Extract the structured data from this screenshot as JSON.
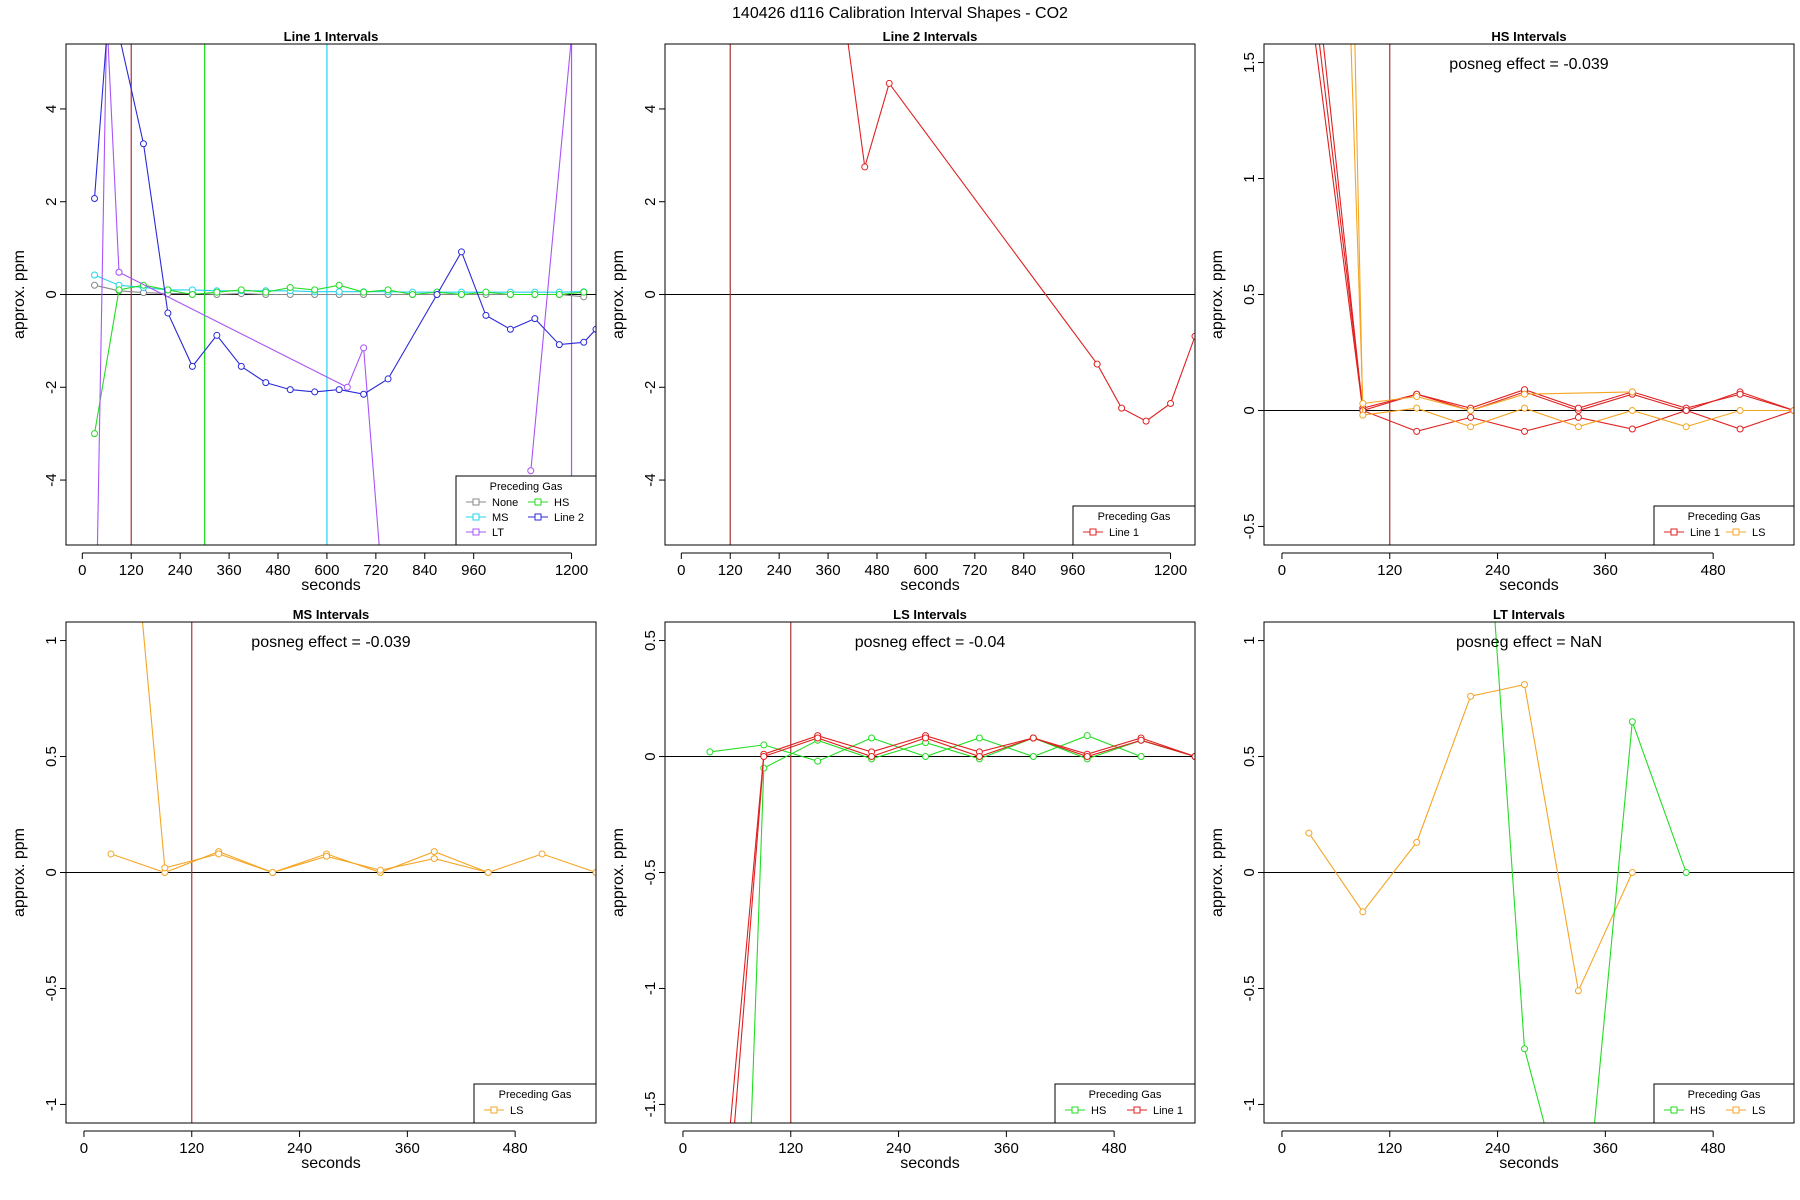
{
  "title": "140426  d116   Calibration Interval Shapes - CO2",
  "colors": {
    "None": "#888888",
    "MS": "#22d3ee",
    "LT": "#a855f7",
    "HS": "#22dd22",
    "Line 2": "#2a2ad8",
    "Line 1": "#e02020",
    "LS": "#f5a524",
    "ref_line": "#a83232",
    "zero_line": "#000000"
  },
  "chart_data": [
    {
      "type": "line",
      "title": "Line 1 Intervals",
      "xlabel": "seconds",
      "ylabel": "approx. ppm",
      "xlim": [
        -40,
        1260
      ],
      "ylim": [
        -5.4,
        5.4
      ],
      "xticks": [
        0,
        120,
        240,
        360,
        480,
        600,
        720,
        840,
        960,
        1200
      ],
      "yticks": [
        -4,
        -2,
        0,
        2,
        4
      ],
      "ref_x": 120,
      "vlines": [
        {
          "x": 300,
          "series": "HS"
        },
        {
          "x": 600,
          "series": "MS"
        },
        {
          "x": 1200,
          "series": "LT"
        }
      ],
      "annotation": "",
      "legend": {
        "title": "Preceding Gas",
        "position": "bottom-right",
        "cols": 2,
        "items": [
          "None",
          "HS",
          "MS",
          "Line 2",
          "LT"
        ]
      },
      "series": [
        {
          "name": "None",
          "x": [
            30,
            90,
            150,
            210,
            270,
            330,
            390,
            450,
            510,
            570,
            630,
            690,
            750,
            810,
            870,
            930,
            990,
            1050,
            1110,
            1170,
            1230
          ],
          "y": [
            0.2,
            0.08,
            0.04,
            0.02,
            0.02,
            0.0,
            0.02,
            0.0,
            0.0,
            0.0,
            0.0,
            0.0,
            0.0,
            0.0,
            0.0,
            0.0,
            0.0,
            0.0,
            0.0,
            0.0,
            -0.05
          ]
        },
        {
          "name": "MS",
          "x": [
            30,
            90,
            150,
            210,
            270,
            330,
            390,
            450,
            510,
            570,
            630,
            690,
            750,
            810,
            870,
            930,
            990,
            1050,
            1110,
            1170,
            1230
          ],
          "y": [
            0.42,
            0.2,
            0.15,
            0.1,
            0.1,
            0.08,
            0.08,
            0.08,
            0.08,
            0.06,
            0.06,
            0.06,
            0.06,
            0.05,
            0.05,
            0.05,
            0.05,
            0.05,
            0.05,
            0.05,
            0.06
          ]
        },
        {
          "name": "HS",
          "x": [
            30,
            90,
            150,
            210,
            270,
            330,
            390,
            450,
            510,
            570,
            630,
            690,
            750,
            810,
            870,
            930,
            990,
            1050,
            1110,
            1170,
            1230
          ],
          "y": [
            -3.0,
            0.1,
            0.2,
            0.1,
            0.0,
            0.05,
            0.1,
            0.05,
            0.15,
            0.1,
            0.2,
            0.05,
            0.1,
            0.0,
            0.05,
            0.0,
            0.05,
            0.0,
            0.0,
            0.0,
            0.05
          ]
        },
        {
          "name": "LT",
          "x": [
            90,
            650,
            690,
            730
          ],
          "y": [
            0.48,
            -2.0,
            -1.15,
            -5.6
          ]
        },
        {
          "name": "LT",
          "x": [
            1100,
            1210
          ],
          "y": [
            -3.8,
            6.5
          ]
        },
        {
          "name": "LT",
          "x": [
            30,
            60,
            90
          ],
          "y": [
            -9.0,
            6.0,
            0.48
          ]
        },
        {
          "name": "Line 2",
          "x": [
            30,
            60,
            90,
            150,
            210,
            270,
            330,
            390,
            450,
            510,
            570,
            630,
            690,
            750,
            870,
            930,
            990,
            1050,
            1110,
            1170,
            1230,
            1260
          ],
          "y": [
            2.07,
            5.6,
            5.6,
            3.25,
            -0.4,
            -1.55,
            -0.88,
            -1.55,
            -1.9,
            -2.05,
            -2.1,
            -2.05,
            -2.15,
            -1.82,
            0.0,
            0.92,
            -0.45,
            -0.75,
            -0.52,
            -1.08,
            -1.03,
            -0.75
          ]
        }
      ]
    },
    {
      "type": "line",
      "title": "Line 2 Intervals",
      "xlabel": "seconds",
      "ylabel": "approx. ppm",
      "xlim": [
        -40,
        1260
      ],
      "ylim": [
        -5.4,
        5.4
      ],
      "xticks": [
        0,
        120,
        240,
        360,
        480,
        600,
        720,
        840,
        960,
        1200
      ],
      "yticks": [
        -4,
        -2,
        0,
        2,
        4
      ],
      "ref_x": 120,
      "vlines": [],
      "annotation": "",
      "legend": {
        "title": "Preceding Gas",
        "position": "bottom-right",
        "cols": 1,
        "items": [
          "Line 1"
        ]
      },
      "series": [
        {
          "name": "Line 1",
          "x": [
            400,
            450,
            510,
            1020,
            1080,
            1140,
            1200,
            1260
          ],
          "y": [
            6.0,
            2.75,
            4.55,
            -1.5,
            -2.45,
            -2.73,
            -2.35,
            -0.9
          ]
        }
      ]
    },
    {
      "type": "line",
      "title": "HS Intervals",
      "xlabel": "seconds",
      "ylabel": "approx. ppm",
      "xlim": [
        -20,
        570
      ],
      "ylim": [
        -0.58,
        1.58
      ],
      "xticks": [
        0,
        120,
        240,
        360,
        480
      ],
      "yticks": [
        -0.5,
        0.0,
        0.5,
        1.0,
        1.5
      ],
      "ref_x": 120,
      "vlines": [],
      "annotation": "posneg effect = -0.039",
      "legend": {
        "title": "Preceding Gas",
        "position": "bottom-right",
        "cols": 2,
        "items": [
          "Line 1",
          "LS"
        ]
      },
      "series": [
        {
          "name": "Line 1",
          "x": [
            30,
            90,
            150,
            210,
            270,
            330,
            390,
            450,
            510,
            570
          ],
          "y": [
            1.8,
            0.0,
            0.07,
            0.0,
            0.08,
            0.0,
            0.07,
            0.0,
            0.08,
            0.0
          ]
        },
        {
          "name": "Line 1",
          "x": [
            35,
            90,
            150,
            210,
            270,
            330,
            390,
            450,
            510,
            570
          ],
          "y": [
            1.8,
            0.01,
            0.07,
            0.01,
            0.09,
            0.01,
            0.08,
            0.01,
            0.07,
            0.0
          ]
        },
        {
          "name": "Line 1",
          "x": [
            40,
            90,
            150,
            210,
            270,
            330,
            390,
            450,
            510,
            570
          ],
          "y": [
            1.8,
            0.0,
            -0.09,
            -0.03,
            -0.09,
            -0.03,
            -0.08,
            0.0,
            -0.08,
            0.0
          ]
        },
        {
          "name": "LS",
          "x": [
            80,
            90,
            150,
            210,
            270,
            330,
            390,
            450,
            510,
            570
          ],
          "y": [
            1.8,
            -0.02,
            0.01,
            -0.07,
            0.01,
            -0.07,
            0.0,
            -0.07,
            0.0,
            0.0
          ]
        },
        {
          "name": "LS",
          "x": [
            75,
            90,
            150,
            210,
            270,
            390
          ],
          "y": [
            1.8,
            0.03,
            0.06,
            0.0,
            0.07,
            0.08
          ]
        }
      ]
    },
    {
      "type": "line",
      "title": "MS Intervals",
      "xlabel": "seconds",
      "ylabel": "approx. ppm",
      "xlim": [
        -20,
        570
      ],
      "ylim": [
        -1.08,
        1.08
      ],
      "xticks": [
        0,
        120,
        240,
        360,
        480
      ],
      "yticks": [
        -1.0,
        -0.5,
        0.0,
        0.5,
        1.0
      ],
      "ref_x": 120,
      "vlines": [],
      "annotation": "posneg effect = -0.039",
      "legend": {
        "title": "Preceding Gas",
        "position": "bottom-right",
        "cols": 1,
        "items": [
          "LS"
        ]
      },
      "series": [
        {
          "name": "LS",
          "x": [
            30,
            90,
            150,
            210,
            270,
            330,
            390,
            450,
            510,
            570
          ],
          "y": [
            0.08,
            0.0,
            0.09,
            0.0,
            0.08,
            0.0,
            0.09,
            0.0,
            0.08,
            0.0
          ]
        },
        {
          "name": "LS",
          "x": [
            60,
            90,
            150,
            210,
            270,
            330,
            390,
            450
          ],
          "y": [
            1.3,
            0.02,
            0.08,
            0.0,
            0.07,
            0.01,
            0.06,
            0.0
          ]
        }
      ]
    },
    {
      "type": "line",
      "title": "LS Intervals",
      "xlabel": "seconds",
      "ylabel": "approx. ppm",
      "xlim": [
        -20,
        570
      ],
      "ylim": [
        -1.58,
        0.58
      ],
      "xticks": [
        0,
        120,
        240,
        360,
        480
      ],
      "yticks": [
        -1.5,
        -1.0,
        -0.5,
        0.0,
        0.5
      ],
      "ref_x": 120,
      "vlines": [],
      "annotation": "posneg effect = -0.04",
      "legend": {
        "title": "Preceding Gas",
        "position": "bottom-right",
        "cols": 2,
        "items": [
          "HS",
          "Line 1"
        ]
      },
      "series": [
        {
          "name": "HS",
          "x": [
            30,
            90,
            150,
            210,
            270,
            330,
            390,
            450,
            510
          ],
          "y": [
            0.02,
            0.05,
            -0.02,
            0.08,
            0.0,
            0.08,
            0.0,
            0.09,
            0.0
          ]
        },
        {
          "name": "HS",
          "x": [
            75,
            90,
            150,
            210,
            270,
            330,
            390,
            450,
            510,
            570
          ],
          "y": [
            -1.7,
            -0.05,
            0.07,
            -0.01,
            0.06,
            -0.01,
            0.08,
            -0.01,
            0.07,
            0.0
          ]
        },
        {
          "name": "Line 1",
          "x": [
            50,
            90,
            150,
            210,
            270,
            330,
            390,
            450,
            510,
            570
          ],
          "y": [
            -1.7,
            0.01,
            0.09,
            0.02,
            0.09,
            0.02,
            0.08,
            0.01,
            0.08,
            0.0
          ]
        },
        {
          "name": "Line 1",
          "x": [
            55,
            90,
            150,
            210,
            270,
            330,
            390,
            450,
            510,
            570
          ],
          "y": [
            -1.7,
            0.0,
            0.08,
            0.0,
            0.08,
            0.0,
            0.08,
            0.0,
            0.07,
            0.0
          ]
        }
      ]
    },
    {
      "type": "line",
      "title": "LT Intervals",
      "xlabel": "seconds",
      "ylabel": "approx. ppm",
      "xlim": [
        -20,
        570
      ],
      "ylim": [
        -1.08,
        1.08
      ],
      "xticks": [
        0,
        120,
        240,
        360,
        480
      ],
      "yticks": [
        -1.0,
        -0.5,
        0.0,
        0.5,
        1.0
      ],
      "ref_x": null,
      "vlines": [],
      "annotation": "posneg effect = NaN",
      "legend": {
        "title": "Preceding Gas",
        "position": "bottom-right",
        "cols": 2,
        "items": [
          "HS",
          "LS"
        ]
      },
      "series": [
        {
          "name": "LS",
          "x": [
            30,
            90,
            150,
            210,
            270,
            330,
            390
          ],
          "y": [
            0.17,
            -0.17,
            0.13,
            0.76,
            0.81,
            -0.51,
            0.0
          ]
        },
        {
          "name": "HS",
          "x": [
            235,
            270,
            300
          ],
          "y": [
            1.2,
            -0.76,
            -1.2
          ]
        },
        {
          "name": "HS",
          "x": [
            345,
            390,
            450
          ],
          "y": [
            -1.2,
            0.65,
            0.0
          ]
        }
      ]
    }
  ]
}
